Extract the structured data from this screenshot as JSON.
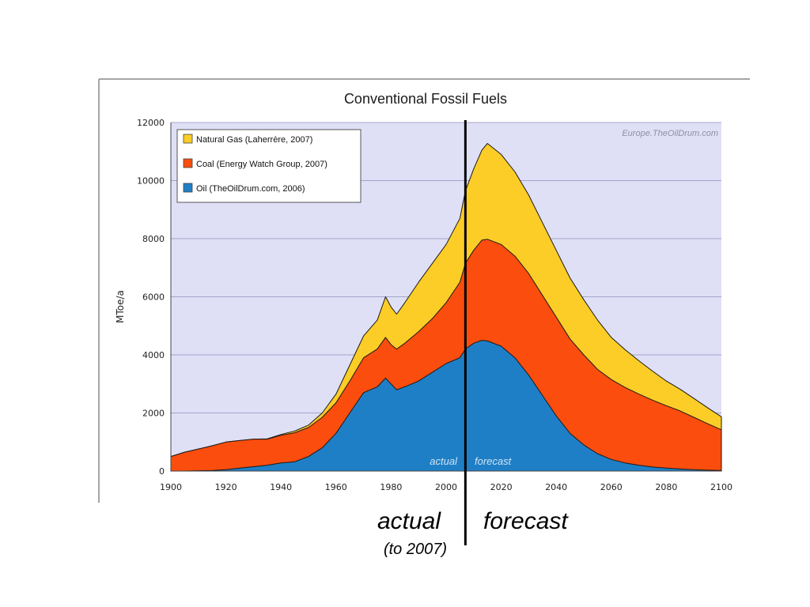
{
  "chart_data": {
    "type": "area",
    "stacked": true,
    "title": "Conventional Fossil Fuels",
    "xlabel": "",
    "ylabel": "MToe/a",
    "xlim": [
      1900,
      2100
    ],
    "ylim": [
      0,
      12000
    ],
    "x_ticks": [
      "1900",
      "1920",
      "1940",
      "1960",
      "1980",
      "2000",
      "2020",
      "2040",
      "2060",
      "2080",
      "2100"
    ],
    "y_ticks": [
      "0",
      "2000",
      "4000",
      "6000",
      "8000",
      "10000",
      "12000"
    ],
    "grid": true,
    "legend_position": "top-left",
    "watermark": "Europe.TheOilDrum.com",
    "divider_year": 2007,
    "inner_annotations": {
      "left": "actual",
      "right": "forecast"
    },
    "outer_annotations": {
      "left": "actual",
      "left_sub": "(to 2007)",
      "right": "forecast"
    },
    "x": [
      1900,
      1905,
      1910,
      1915,
      1920,
      1925,
      1930,
      1935,
      1940,
      1945,
      1950,
      1955,
      1960,
      1965,
      1970,
      1975,
      1978,
      1980,
      1982,
      1985,
      1990,
      1995,
      2000,
      2005,
      2007,
      2010,
      2013,
      2015,
      2020,
      2025,
      2030,
      2035,
      2040,
      2045,
      2050,
      2055,
      2060,
      2065,
      2070,
      2075,
      2080,
      2085,
      2090,
      2095,
      2100
    ],
    "series": [
      {
        "name": "Oil  (TheOilDrum.com, 2006)",
        "color": "#1f7fc6",
        "values": [
          0,
          0,
          10,
          20,
          50,
          100,
          150,
          200,
          280,
          320,
          500,
          800,
          1300,
          2000,
          2700,
          2900,
          3200,
          3000,
          2800,
          2900,
          3100,
          3400,
          3700,
          3900,
          4200,
          4400,
          4500,
          4480,
          4300,
          3900,
          3300,
          2600,
          1900,
          1300,
          900,
          600,
          400,
          280,
          200,
          140,
          100,
          70,
          50,
          30,
          20
        ]
      },
      {
        "name": "Coal  (Energy Watch Group, 2007)",
        "color": "#fb4d0d",
        "values": [
          500,
          650,
          750,
          850,
          950,
          950,
          950,
          900,
          950,
          1000,
          1000,
          1050,
          1050,
          1100,
          1200,
          1300,
          1400,
          1350,
          1400,
          1500,
          1700,
          1850,
          2100,
          2600,
          2950,
          3200,
          3450,
          3500,
          3500,
          3500,
          3500,
          3450,
          3400,
          3250,
          3100,
          2900,
          2750,
          2600,
          2450,
          2300,
          2150,
          2000,
          1800,
          1600,
          1400
        ]
      },
      {
        "name": "Natural Gas  (Laherrère, 2007)",
        "color": "#fccd27",
        "values": [
          0,
          0,
          0,
          0,
          0,
          0,
          0,
          10,
          30,
          60,
          80,
          150,
          300,
          550,
          750,
          1000,
          1400,
          1300,
          1200,
          1400,
          1700,
          1900,
          2000,
          2200,
          2500,
          2800,
          3100,
          3300,
          3100,
          2900,
          2700,
          2500,
          2300,
          2100,
          1900,
          1700,
          1450,
          1300,
          1150,
          1000,
          850,
          750,
          650,
          550,
          450
        ]
      }
    ]
  }
}
